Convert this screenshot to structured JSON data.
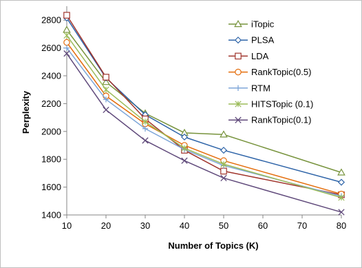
{
  "chart_data": {
    "type": "line",
    "x": [
      10,
      20,
      30,
      40,
      50,
      80
    ],
    "xlabel": "Number of Topics (K)",
    "ylabel": "Perplexity",
    "ylim": [
      1400,
      2900
    ],
    "yticks": [
      1400,
      1600,
      1800,
      2000,
      2200,
      2400,
      2600,
      2800
    ],
    "xticks": [
      10,
      20,
      30,
      40,
      50,
      60,
      70,
      80
    ],
    "grid": false,
    "legend_position": "top-right",
    "series": [
      {
        "name": "iTopic",
        "color": "#77933c",
        "marker": "triangle",
        "values": [
          2730,
          2355,
          2130,
          1990,
          1978,
          1705
        ]
      },
      {
        "name": "PLSA",
        "color": "#2e64a8",
        "marker": "diamond",
        "values": [
          2815,
          2385,
          2120,
          1960,
          1865,
          1635
        ]
      },
      {
        "name": "LDA",
        "color": "#a0342c",
        "marker": "square",
        "values": [
          2835,
          2390,
          2090,
          1865,
          1715,
          1545
        ]
      },
      {
        "name": "RankTopic(0.5)",
        "color": "#e46c0a",
        "marker": "circle",
        "values": [
          2640,
          2255,
          2055,
          1900,
          1790,
          1550
        ]
      },
      {
        "name": "RTM",
        "color": "#7ea6d8",
        "marker": "plus",
        "values": [
          2600,
          2230,
          2020,
          1870,
          1755,
          1535
        ]
      },
      {
        "name": "HITSTopic (0.1)",
        "color": "#9bbb59",
        "marker": "asterisk",
        "values": [
          2690,
          2300,
          2070,
          1880,
          1765,
          1525
        ]
      },
      {
        "name": "RankTopic(0.1)",
        "color": "#604a7b",
        "marker": "x",
        "values": [
          2560,
          2155,
          1935,
          1790,
          1665,
          1420
        ]
      }
    ]
  }
}
